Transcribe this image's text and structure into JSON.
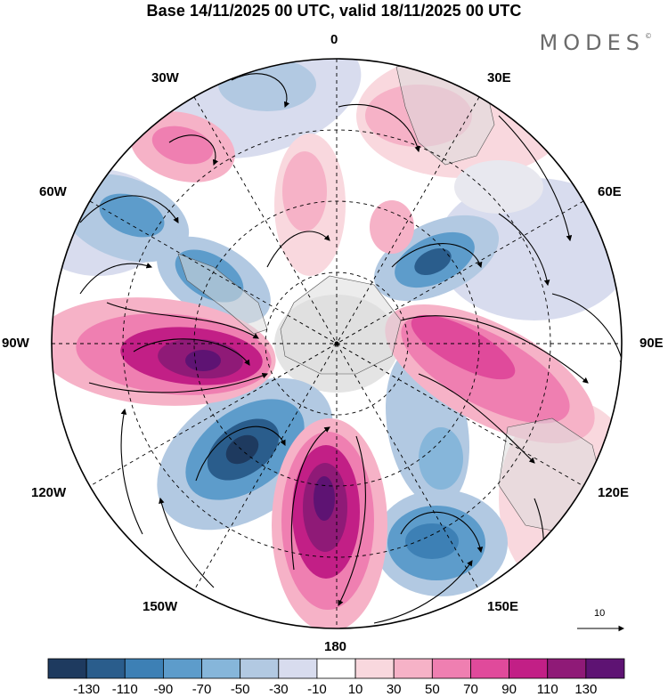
{
  "title": "Base 14/11/2025 00 UTC, valid 18/11/2025 00 UTC",
  "brand": {
    "name": "MODES",
    "mark": "©"
  },
  "longitude_labels": {
    "lon_0": "0",
    "lon_30e": "30E",
    "lon_60e": "60E",
    "lon_90e": "90E",
    "lon_120e": "120E",
    "lon_150e": "150E",
    "lon_180": "180",
    "lon_150w": "150W",
    "lon_120w": "120W",
    "lon_90w": "90W",
    "lon_60w": "60W",
    "lon_30w": "30W"
  },
  "colorbar": {
    "colors": [
      "#1e3a5f",
      "#2a5d8c",
      "#3d80b5",
      "#5d9ccb",
      "#86b6da",
      "#b2c9e2",
      "#d8dcee",
      "#ffffff",
      "#f9d8de",
      "#f6b2c7",
      "#ef7fb1",
      "#e04a9b",
      "#c21f86",
      "#8f1a77",
      "#5e1373"
    ],
    "ticks": [
      "-130",
      "-110",
      "-90",
      "-70",
      "-50",
      "-30",
      "-10",
      "10",
      "30",
      "50",
      "70",
      "90",
      "110",
      "130"
    ]
  },
  "reference_vector": {
    "label": "10"
  }
}
